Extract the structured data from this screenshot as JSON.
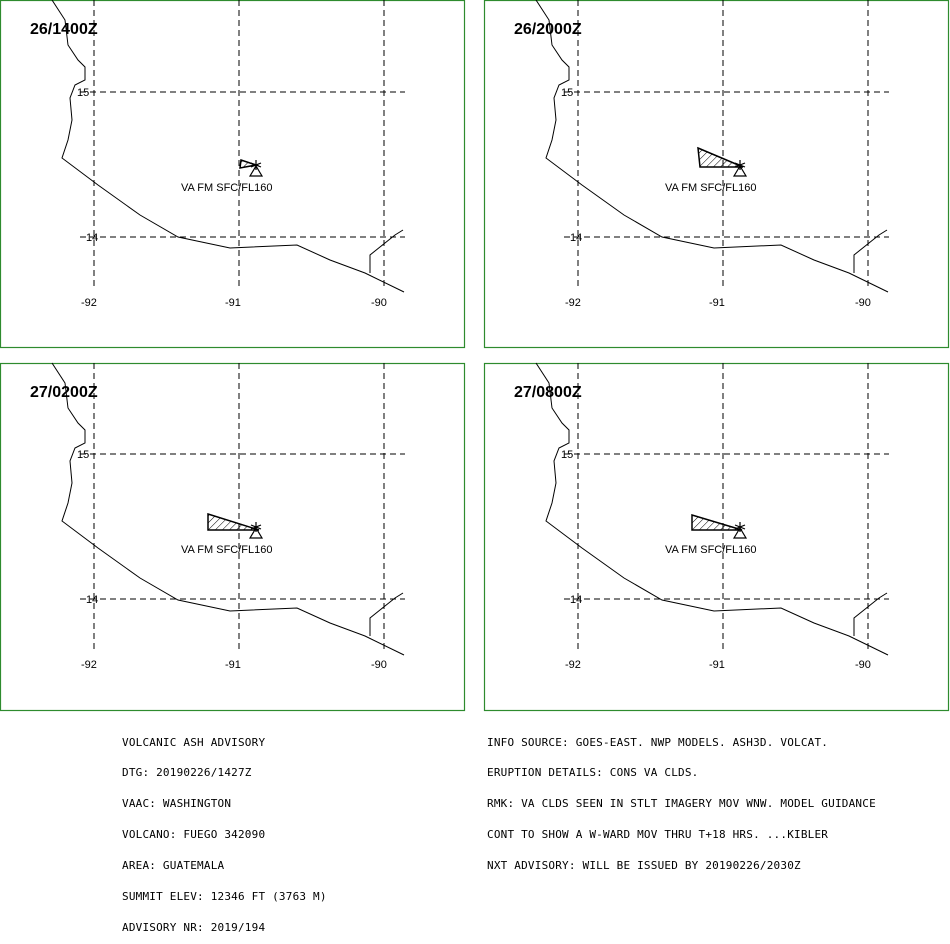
{
  "panels": [
    {
      "title": "26/1400Z",
      "label": "VA FM SFC/FL160",
      "ash": [
        [
          241,
          160
        ],
        [
          256,
          165
        ],
        [
          240,
          168
        ]
      ]
    },
    {
      "title": "26/2000Z",
      "label": "VA FM SFC/FL160",
      "ash": [
        [
          698,
          148
        ],
        [
          743,
          167
        ],
        [
          700,
          167
        ]
      ]
    },
    {
      "title": "27/0200Z",
      "label": "VA FM SFC/FL160",
      "ash": [
        [
          208,
          514
        ],
        [
          259,
          530
        ],
        [
          208,
          530
        ]
      ]
    },
    {
      "title": "27/0800Z",
      "label": "VA FM SFC/FL160",
      "ash": [
        [
          692,
          515
        ],
        [
          742,
          530
        ],
        [
          692,
          530
        ]
      ]
    }
  ],
  "axes": {
    "lat_labels": [
      "15",
      "14"
    ],
    "lon_labels": [
      "-92",
      "-91",
      "-90"
    ]
  },
  "left_text": [
    "VOLCANIC ASH ADVISORY",
    "DTG: 20190226/1427Z",
    "VAAC: WASHINGTON",
    "VOLCANO: FUEGO 342090",
    "AREA: GUATEMALA",
    "SUMMIT ELEV: 12346 FT (3763 M)",
    "ADVISORY NR: 2019/194"
  ],
  "right_text": [
    "INFO SOURCE: GOES-EAST. NWP MODELS. ASH3D. VOLCAT.",
    "ERUPTION DETAILS: CONS VA CLDS.",
    "RMK: VA CLDS SEEN IN STLT IMAGERY MOV WNW. MODEL GUIDANCE",
    "CONT TO SHOW A W-WARD MOV THRU T+18 HRS. ...KIBLER",
    "NXT ADVISORY: WILL BE ISSUED BY 20190226/2030Z"
  ]
}
